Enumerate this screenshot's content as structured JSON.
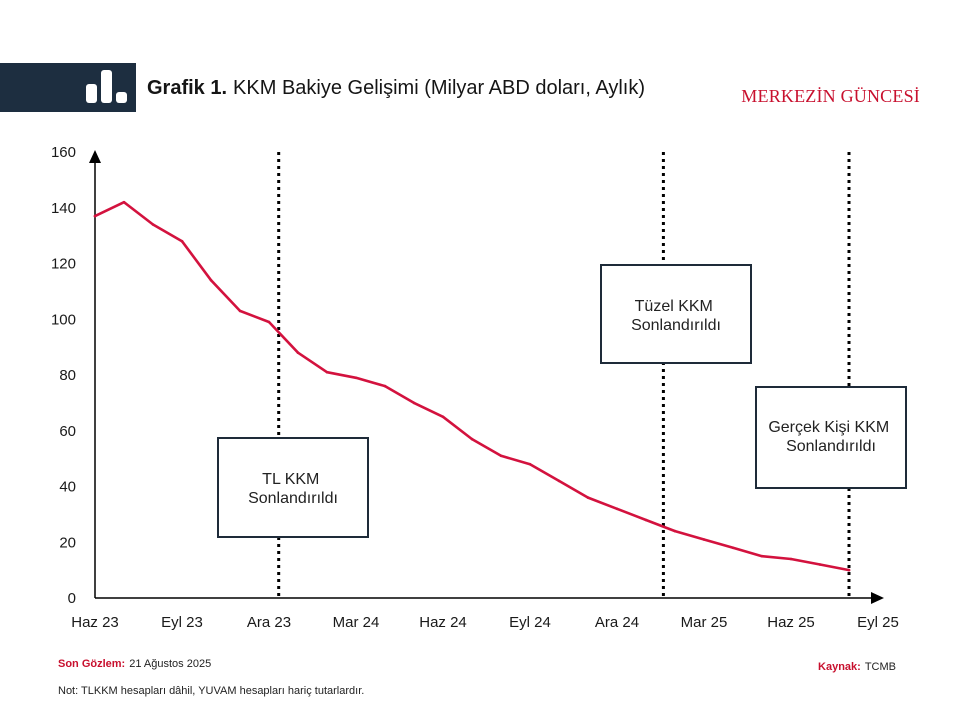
{
  "header": {
    "icon": "bar-chart-icon",
    "figure_label": "Grafik 1.",
    "brand": "MERKEZİN GÜNCESİ"
  },
  "colors": {
    "banner": "#1d2e40",
    "accent": "#c8102e",
    "series": "#d3123e",
    "box_border": "#1e2b39"
  },
  "chart_data": {
    "type": "line",
    "title": "KKM Bakiye Gelişimi (Milyar ABD doları, Aylık)",
    "x": [
      "2023-06",
      "2023-07",
      "2023-08",
      "2023-09",
      "2023-10",
      "2023-11",
      "2023-12",
      "2024-01",
      "2024-02",
      "2024-03",
      "2024-04",
      "2024-05",
      "2024-06",
      "2024-07",
      "2024-08",
      "2024-09",
      "2024-10",
      "2024-11",
      "2024-12",
      "2025-01",
      "2025-02",
      "2025-03",
      "2025-04",
      "2025-05",
      "2025-06",
      "2025-07",
      "2025-08"
    ],
    "series": [
      {
        "color": "#d3123e",
        "values": [
          137,
          142,
          134,
          128,
          114,
          103,
          99,
          88,
          81,
          79,
          76,
          70,
          65,
          57,
          51,
          48,
          42,
          36,
          32,
          28,
          24,
          21,
          18,
          15,
          14,
          12,
          10
        ]
      }
    ],
    "xlim": [
      "2023-06",
      "2025-09"
    ],
    "ylim": [
      0,
      160
    ],
    "yticks": [
      0,
      20,
      40,
      60,
      80,
      100,
      120,
      140,
      160
    ],
    "xticks": [
      {
        "x": "2023-06",
        "label": "Haz 23"
      },
      {
        "x": "2023-09",
        "label": "Eyl 23"
      },
      {
        "x": "2023-12",
        "label": "Ara 23"
      },
      {
        "x": "2024-03",
        "label": "Mar 24"
      },
      {
        "x": "2024-06",
        "label": "Haz 24"
      },
      {
        "x": "2024-09",
        "label": "Eyl 24"
      },
      {
        "x": "2024-12",
        "label": "Ara 24"
      },
      {
        "x": "2025-03",
        "label": "Mar 25"
      },
      {
        "x": "2025-06",
        "label": "Haz 25"
      },
      {
        "x": "2025-09",
        "label": "Eyl 25"
      }
    ],
    "grid": false,
    "annotations": [
      {
        "x": "2023-12-11",
        "lines": [
          "TL KKM",
          "Sonlandırıldı"
        ]
      },
      {
        "x": "2025-01-19",
        "lines": [
          "Tüzel KKM",
          "Sonlandırıldı"
        ]
      },
      {
        "x": "2025-08",
        "lines": [
          "Gerçek Kişi KKM",
          "Sonlandırıldı"
        ]
      }
    ]
  },
  "footer": {
    "last_obs_label": "Son Gözlem:",
    "last_obs_value": "21 Ağustos 2025",
    "source_label": "Kaynak:",
    "source_value": "TCMB",
    "note": "Not: TLKKM hesapları dâhil, YUVAM hesapları hariç tutarlardır."
  }
}
